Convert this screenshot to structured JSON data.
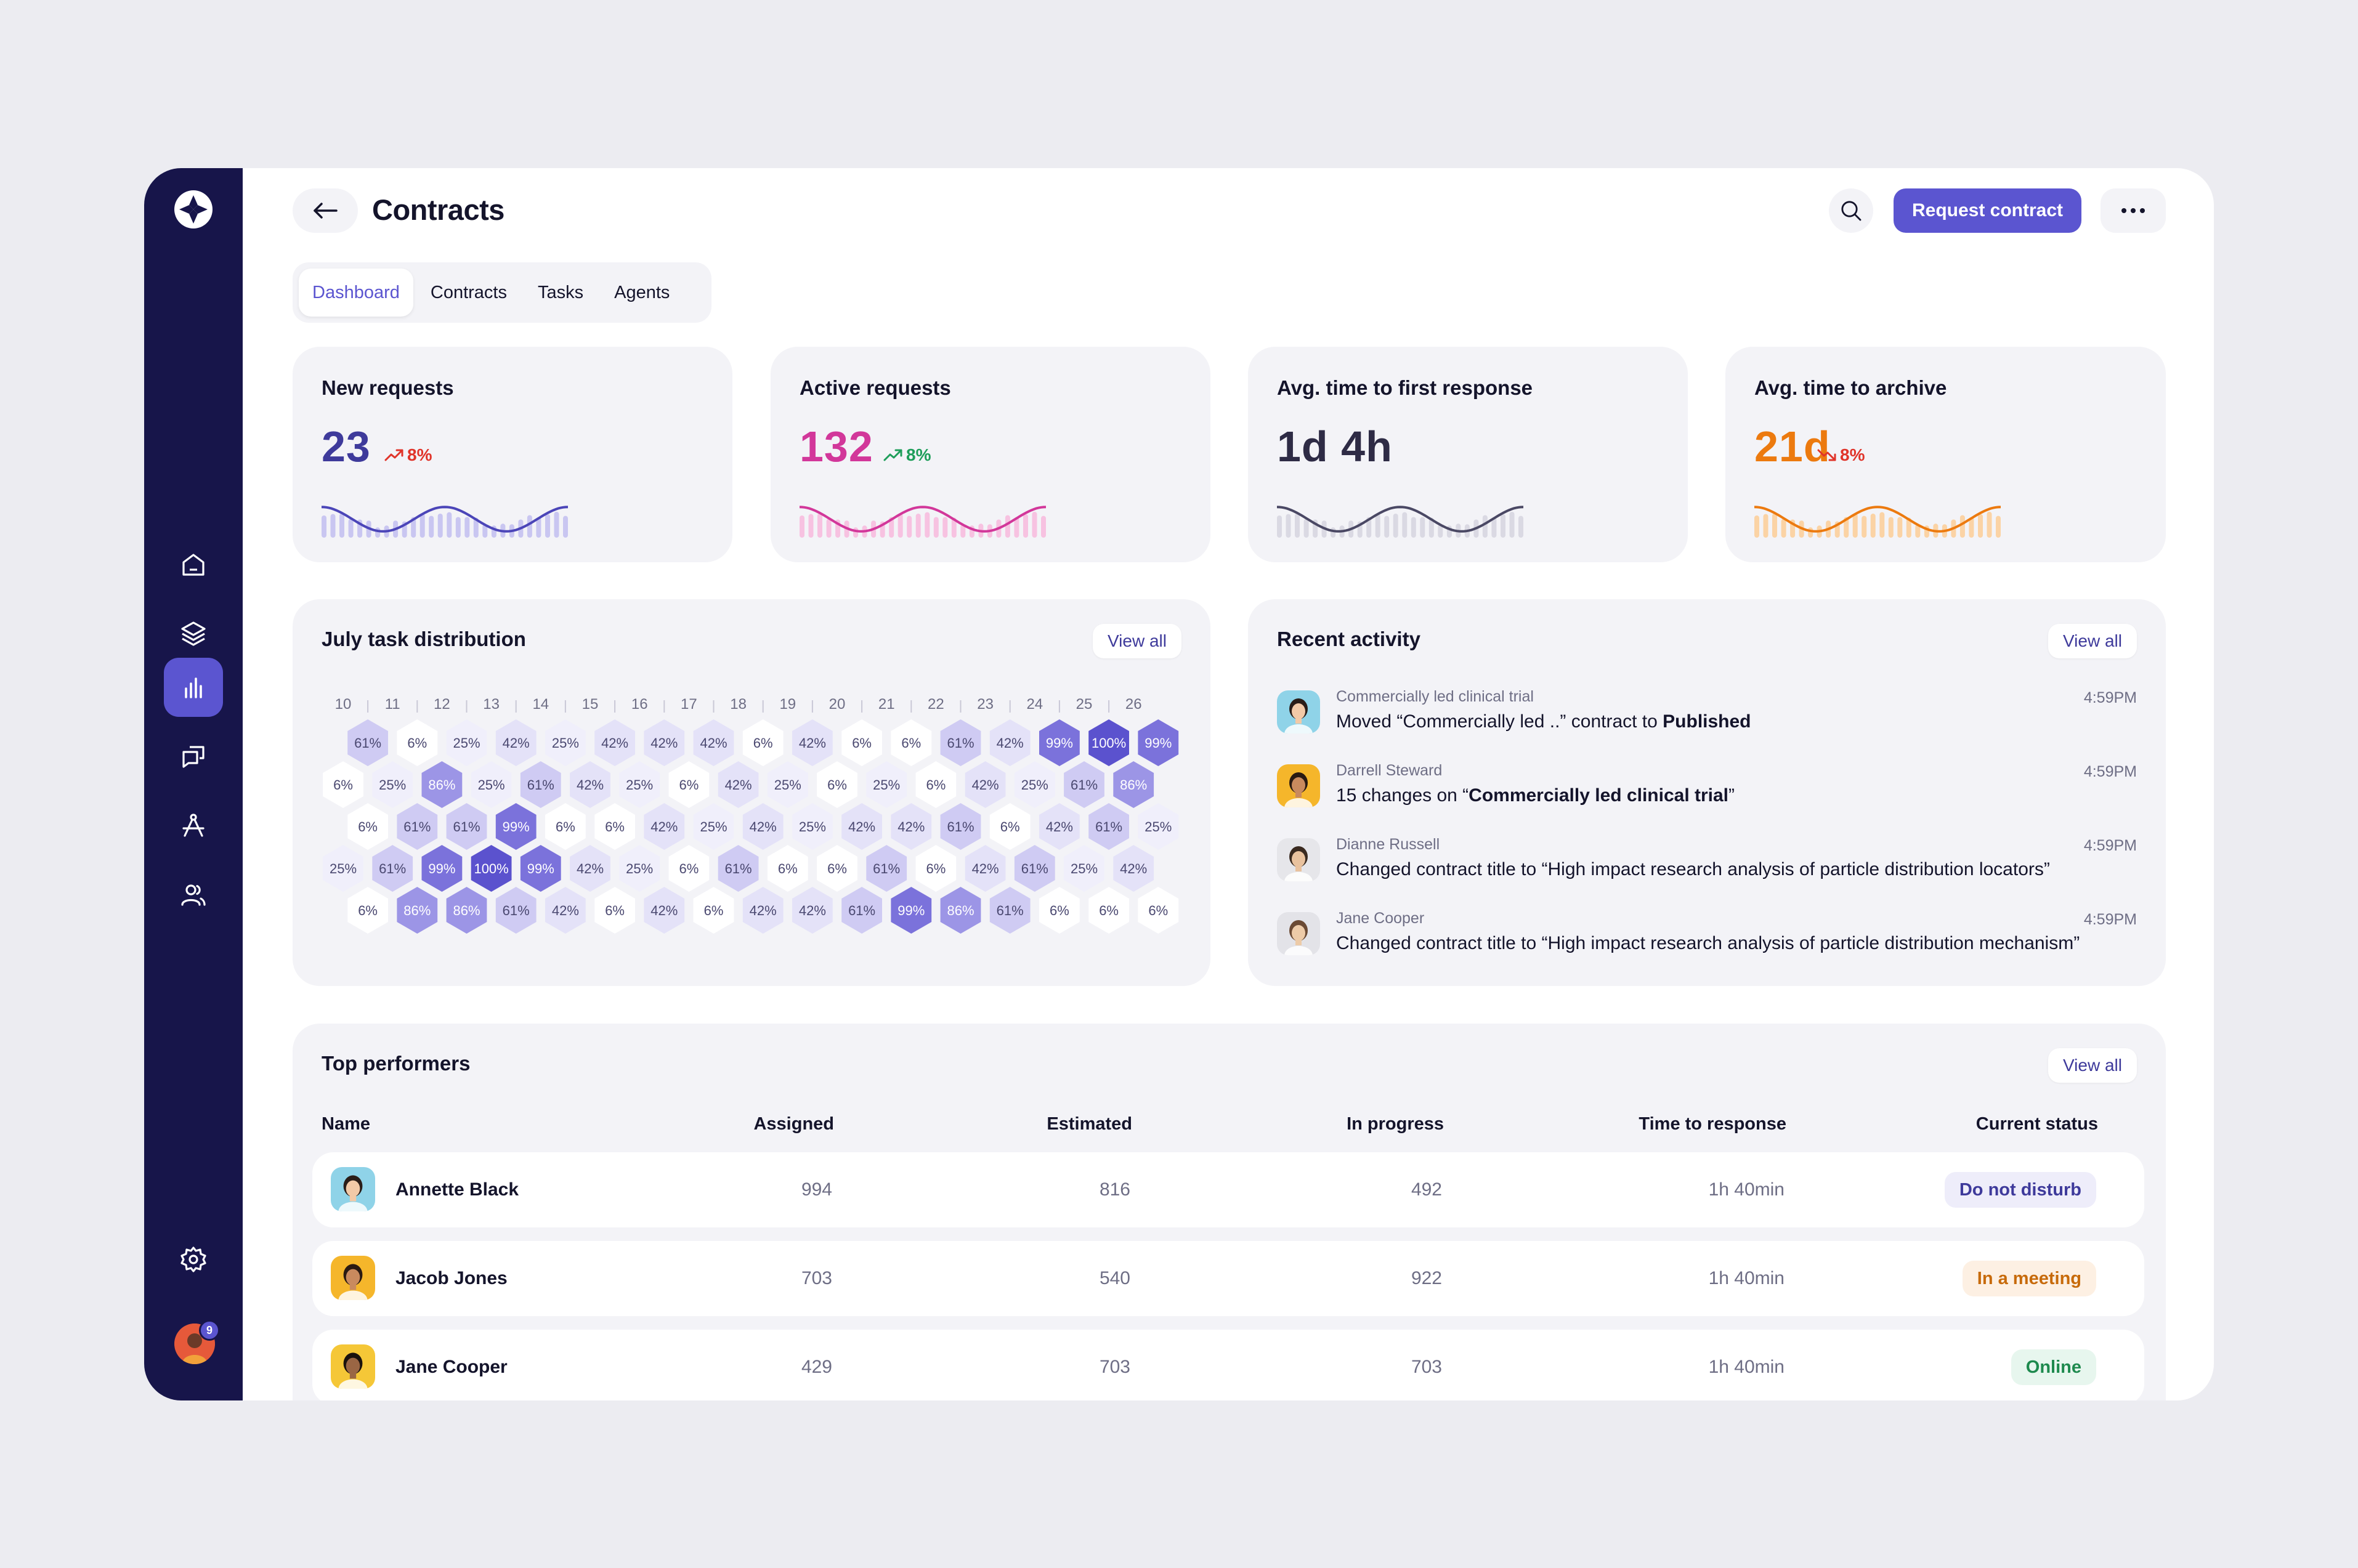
{
  "header": {
    "title": "Contracts",
    "primary_action": "Request contract"
  },
  "tabs": [
    {
      "label": "Dashboard",
      "active": true
    },
    {
      "label": "Contracts",
      "active": false
    },
    {
      "label": "Tasks",
      "active": false
    },
    {
      "label": "Agents",
      "active": false
    }
  ],
  "stats": [
    {
      "title": "New requests",
      "value": "23",
      "trend": "8%",
      "direction": "up",
      "value_color": "#3E3A9B",
      "trend_color": "#E0342A",
      "line_color": "#4B45B8",
      "bar_color": "#C9C6F1"
    },
    {
      "title": "Active requests",
      "value": "132",
      "trend": "8%",
      "direction": "up",
      "value_color": "#D2379A",
      "trend_color": "#1E9E5A",
      "line_color": "#D2379A",
      "bar_color": "#F7C2E1"
    },
    {
      "title": "Avg. time to first response",
      "value": "1d 4h",
      "trend": "",
      "direction": "none",
      "value_color": "#2E2B45",
      "trend_color": "#2E2B45",
      "line_color": "#4A4864",
      "bar_color": "#DAD9E3"
    },
    {
      "title": "Avg. time to archive",
      "value": "21d",
      "trend": "8%",
      "direction": "down",
      "value_color": "#EC7A0F",
      "trend_color": "#E0342A",
      "line_color": "#EC7A0F",
      "bar_color": "#FBD3A5"
    }
  ],
  "distribution": {
    "title": "July task distribution",
    "view_all": "View all",
    "days": [
      "10",
      "11",
      "12",
      "13",
      "14",
      "15",
      "16",
      "17",
      "18",
      "19",
      "20",
      "21",
      "22",
      "23",
      "24",
      "25",
      "26"
    ],
    "rows": [
      [
        "61%",
        "6%",
        "25%",
        "42%",
        "25%",
        "42%",
        "42%",
        "42%",
        "6%",
        "42%",
        "6%",
        "6%",
        "61%",
        "42%",
        "99%",
        "100%",
        "99%"
      ],
      [
        "6%",
        "25%",
        "86%",
        "25%",
        "61%",
        "42%",
        "25%",
        "6%",
        "42%",
        "25%",
        "6%",
        "25%",
        "6%",
        "42%",
        "25%",
        "61%",
        "86%"
      ],
      [
        "6%",
        "61%",
        "61%",
        "99%",
        "6%",
        "6%",
        "42%",
        "25%",
        "42%",
        "25%",
        "42%",
        "42%",
        "61%",
        "6%",
        "42%",
        "61%",
        "25%"
      ],
      [
        "25%",
        "61%",
        "99%",
        "100%",
        "99%",
        "42%",
        "25%",
        "6%",
        "61%",
        "6%",
        "6%",
        "61%",
        "6%",
        "42%",
        "61%",
        "25%",
        "42%"
      ],
      [
        "6%",
        "86%",
        "86%",
        "61%",
        "42%",
        "6%",
        "42%",
        "6%",
        "42%",
        "42%",
        "61%",
        "99%",
        "86%",
        "61%",
        "6%",
        "6%",
        "6%"
      ]
    ],
    "colors": {
      "6%": "#FFFFFF",
      "25%": "#F0EFFB",
      "42%": "#E4E2F8",
      "61%": "#CFCBF3",
      "86%": "#9C95E6",
      "99%": "#7B72DB",
      "100%": "#5B52CE"
    }
  },
  "activity": {
    "title": "Recent activity",
    "view_all": "View all",
    "items": [
      {
        "name": "Commercially led clinical trial",
        "pre": "Moved “Commercially led ..” contract to ",
        "bold": "Published",
        "post": "",
        "time": "4:59PM",
        "avatar_bg": "#8FD3E8",
        "skin": "#F2C9A7",
        "hair": "#2A1D18"
      },
      {
        "name": "Darrell Steward",
        "pre": "15 changes on “",
        "bold": "Commercially led clinical trial",
        "post": "”",
        "time": "4:59PM",
        "avatar_bg": "#F5B62B",
        "skin": "#C98A5E",
        "hair": "#2A1A12"
      },
      {
        "name": "Dianne Russell",
        "pre": "Changed contract title to “High impact research analysis of particle distribution locators”",
        "bold": "",
        "post": "",
        "time": "4:59PM",
        "avatar_bg": "#E6E6EA",
        "skin": "#E9C29E",
        "hair": "#3A2A20"
      },
      {
        "name": "Jane Cooper",
        "pre": "Changed contract title to “High impact research analysis of particle distribution mechanism”",
        "bold": "",
        "post": "",
        "time": "4:59PM",
        "avatar_bg": "#E3E3E8",
        "skin": "#EDCBA8",
        "hair": "#6B4A34"
      }
    ]
  },
  "performers": {
    "title": "Top performers",
    "view_all": "View all",
    "columns": [
      "Name",
      "Assigned",
      "Estimated",
      "In progress",
      "Time to response",
      "Current status"
    ],
    "rows": [
      {
        "name": "Annette Black",
        "assigned": "994",
        "estimated": "816",
        "in_progress": "492",
        "time": "1h 40min",
        "status": "Do not disturb",
        "status_bg": "#EEEDFA",
        "status_color": "#3E3A9B",
        "avatar_bg": "#8FD3E8",
        "skin": "#F2C9A7",
        "hair": "#2A1D18"
      },
      {
        "name": "Jacob Jones",
        "assigned": "703",
        "estimated": "540",
        "in_progress": "922",
        "time": "1h 40min",
        "status": "In a meeting",
        "status_bg": "#FDF0E3",
        "status_color": "#C76A0A",
        "avatar_bg": "#F5B62B",
        "skin": "#C98A5E",
        "hair": "#2A1A12"
      },
      {
        "name": "Jane Cooper",
        "assigned": "429",
        "estimated": "703",
        "in_progress": "703",
        "time": "1h 40min",
        "status": "Online",
        "status_bg": "#E7F6EE",
        "status_color": "#1E8A4E",
        "avatar_bg": "#F5C737",
        "skin": "#9A6644",
        "hair": "#1A120D"
      }
    ]
  },
  "user": {
    "notification_count": "9"
  },
  "icons": [
    "logo-icon",
    "home-icon",
    "layers-icon",
    "chart-icon",
    "chat-icon",
    "compass-icon",
    "users-icon",
    "settings-icon",
    "back-arrow-icon",
    "search-icon",
    "more-icon"
  ]
}
